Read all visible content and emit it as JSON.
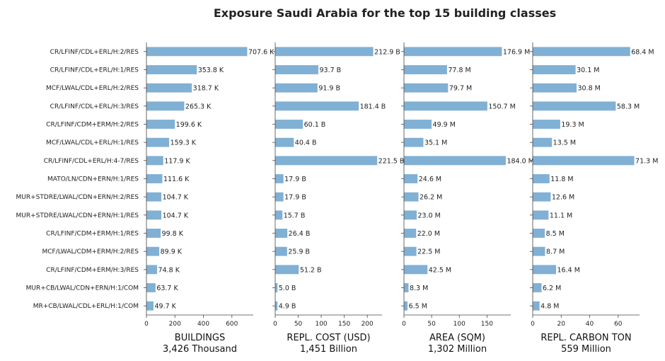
{
  "chart_data": {
    "type": "bar",
    "title": "Exposure Saudi Arabia for the top 15 building classes",
    "bar_color": "#80b0d4",
    "orientation": "horizontal",
    "categories": [
      "CR/LFINF/CDL+ERL/H:2/RES",
      "CR/LFINF/CDL+ERL/H:1/RES",
      "MCF/LWAL/CDL+ERL/H:2/RES",
      "CR/LFINF/CDL+ERL/H:3/RES",
      "CR/LFINF/CDM+ERM/H:2/RES",
      "MCF/LWAL/CDL+ERL/H:1/RES",
      "CR/LFINF/CDL+ERL/H:4-7/RES",
      "MATO/LN/CDN+ERN/H:1/RES",
      "MUR+STDRE/LWAL/CDN+ERN/H:2/RES",
      "MUR+STDRE/LWAL/CDN+ERN/H:1/RES",
      "CR/LFINF/CDM+ERM/H:1/RES",
      "MCF/LWAL/CDM+ERM/H:2/RES",
      "CR/LFINF/CDM+ERM/H:3/RES",
      "MUR+CB/LWAL/CDN+ERN/H:1/COM",
      "MR+CB/LWAL/CDL+ERL/H:1/COM"
    ],
    "panels": [
      {
        "name": "BUILDINGS",
        "xlabel": "BUILDINGS",
        "xlabel2": "3,426 Thousand",
        "unit": "K",
        "xlim": [
          0,
          750
        ],
        "ticks": [
          0,
          200,
          400,
          600
        ],
        "values": [
          707.6,
          353.8,
          318.7,
          265.3,
          199.6,
          159.3,
          117.9,
          111.6,
          104.7,
          104.7,
          99.8,
          89.9,
          74.8,
          63.7,
          49.7
        ],
        "labels": [
          "707.6 K",
          "353.8 K",
          "318.7 K",
          "265.3 K",
          "199.6 K",
          "159.3 K",
          "117.9 K",
          "111.6 K",
          "104.7 K",
          "104.7 K",
          "99.8 K",
          "89.9 K",
          "74.8 K",
          "63.7 K",
          "49.7 K"
        ]
      },
      {
        "name": "REPL. COST (USD)",
        "xlabel": "REPL. COST (USD)",
        "xlabel2": "1,451 Billion",
        "unit": "B",
        "xlim": [
          0,
          232
        ],
        "ticks": [
          0,
          50,
          100,
          150,
          200
        ],
        "values": [
          212.9,
          93.7,
          91.9,
          181.4,
          60.1,
          40.4,
          221.5,
          17.9,
          17.9,
          15.7,
          26.4,
          25.9,
          51.2,
          5.0,
          4.9
        ],
        "labels": [
          "212.9 B",
          "93.7 B",
          "91.9 B",
          "181.4 B",
          "60.1 B",
          "40.4 B",
          "221.5 B",
          "17.9 B",
          "17.9 B",
          "15.7 B",
          "26.4 B",
          "25.9 B",
          "51.2 B",
          "5.0 B",
          "4.9 B"
        ]
      },
      {
        "name": "AREA (SQM)",
        "xlabel": "AREA (SQM)",
        "xlabel2": "1,302 Million",
        "unit": "M",
        "xlim": [
          0,
          193
        ],
        "ticks": [
          0,
          50,
          100,
          150
        ],
        "values": [
          176.9,
          77.8,
          79.7,
          150.7,
          49.9,
          35.1,
          184.0,
          24.6,
          26.2,
          23.0,
          22.0,
          22.5,
          42.5,
          8.3,
          6.5
        ],
        "labels": [
          "176.9 M",
          "77.8 M",
          "79.7 M",
          "150.7 M",
          "49.9 M",
          "35.1 M",
          "184.0 M",
          "24.6 M",
          "26.2 M",
          "23.0 M",
          "22.0 M",
          "22.5 M",
          "42.5 M",
          "8.3 M",
          "6.5 M"
        ]
      },
      {
        "name": "REPL. CARBON TON",
        "xlabel": "REPL. CARBON TON",
        "xlabel2": "559 Million",
        "unit": "M",
        "xlim": [
          0,
          75
        ],
        "ticks": [
          0,
          20,
          40,
          60
        ],
        "values": [
          68.4,
          30.1,
          30.8,
          58.3,
          19.3,
          13.5,
          71.3,
          11.8,
          12.6,
          11.1,
          8.5,
          8.7,
          16.4,
          6.2,
          4.8
        ],
        "labels": [
          "68.4 M",
          "30.1 M",
          "30.8 M",
          "58.3 M",
          "19.3 M",
          "13.5 M",
          "71.3 M",
          "11.8 M",
          "12.6 M",
          "11.1 M",
          "8.5 M",
          "8.7 M",
          "16.4 M",
          "6.2 M",
          "4.8 M"
        ]
      }
    ]
  }
}
